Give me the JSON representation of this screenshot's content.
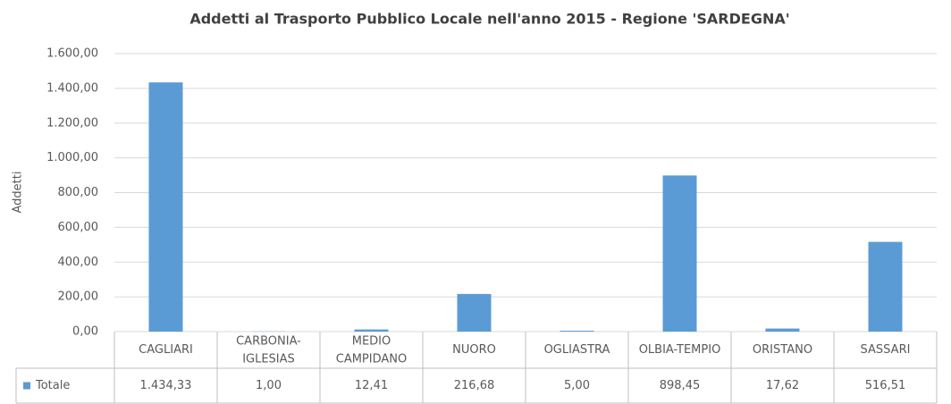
{
  "chart_data": {
    "type": "bar",
    "title": "Addetti al Trasporto Pubblico Locale nell'anno 2015 - Regione 'SARDEGNA'",
    "y_label": "Addetti",
    "categories": [
      "CAGLIARI",
      "CARBONIA-IGLESIAS",
      "MEDIO CAMPIDANO",
      "NUORO",
      "OGLIASTRA",
      "OLBIA-TEMPIO",
      "ORISTANO",
      "SASSARI"
    ],
    "series": [
      {
        "name": "Totale",
        "color": "#5b9bd5",
        "values": [
          1434.33,
          1,
          12.41,
          216.68,
          5,
          898.45,
          17.62,
          516.51
        ],
        "value_labels": [
          "1.434,33",
          "1,00",
          "12,41",
          "216,68",
          "5,00",
          "898,45",
          "17,62",
          "516,51"
        ]
      }
    ],
    "ylim": [
      0,
      1600
    ],
    "yticks": [
      {
        "value": 0,
        "label": "0,00"
      },
      {
        "value": 200,
        "label": "200,00"
      },
      {
        "value": 400,
        "label": "400,00"
      },
      {
        "value": 600,
        "label": "600,00"
      },
      {
        "value": 800,
        "label": "800,00"
      },
      {
        "value": 1000,
        "label": "1.000,00"
      },
      {
        "value": 1200,
        "label": "1.200,00"
      },
      {
        "value": 1400,
        "label": "1.400,00"
      },
      {
        "value": 1600,
        "label": "1.600,00"
      }
    ],
    "grid": true
  }
}
